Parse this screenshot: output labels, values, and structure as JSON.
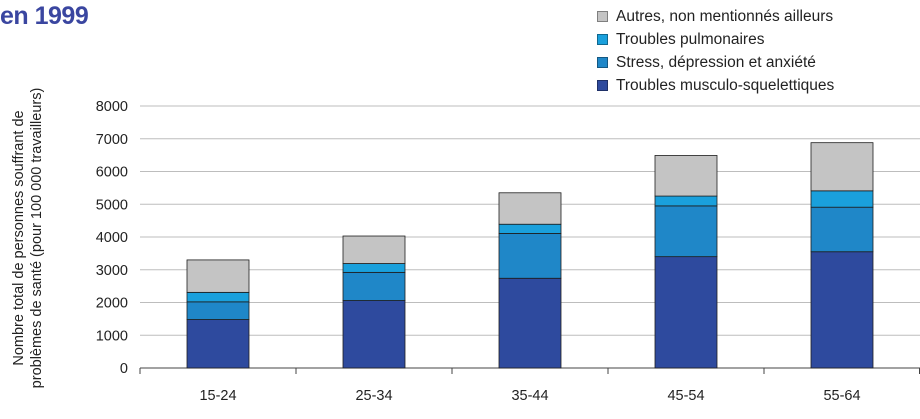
{
  "chart_data": {
    "type": "bar",
    "stacked": true,
    "title": "en 1999",
    "ylabel_lines": [
      "Nombre total de personnes souffrant de",
      "problèmes de santé (pour 100 000 travailleurs)"
    ],
    "xlabel": "",
    "categories": [
      "15-24",
      "25-34",
      "35-44",
      "45-54",
      "55-64"
    ],
    "ylim": [
      0,
      8000
    ],
    "yticks": [
      "0",
      "1000",
      "2000",
      "3000",
      "4000",
      "5000",
      "6000",
      "7000",
      "8000"
    ],
    "grid": true,
    "legend_position": "top-right",
    "series": [
      {
        "name": "Troubles musculo-squelettiques",
        "color": "#2e4a9e",
        "values": [
          1480,
          2060,
          2740,
          3400,
          3550
        ]
      },
      {
        "name": "Stress, dépression et anxiété",
        "color": "#1f87c8",
        "values": [
          540,
          860,
          1370,
          1550,
          1360
        ]
      },
      {
        "name": "Troubles pulmonaires",
        "color": "#1aa0dc",
        "values": [
          290,
          270,
          280,
          300,
          500
        ]
      },
      {
        "name": "Autres, non mentionnés ailleurs",
        "color": "#c4c4c4",
        "values": [
          990,
          840,
          960,
          1240,
          1470
        ]
      }
    ]
  }
}
